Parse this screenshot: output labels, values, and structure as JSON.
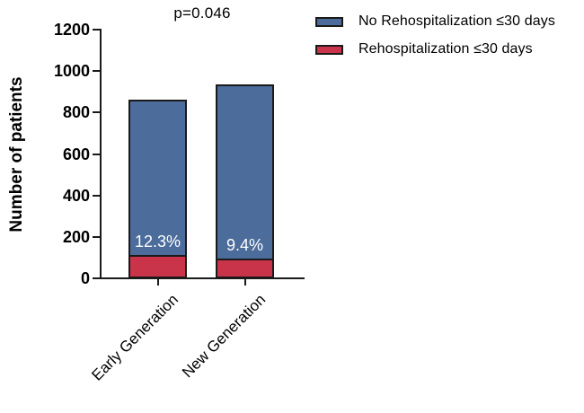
{
  "chart_data": {
    "type": "stacked_bar",
    "title": "",
    "annotation": "p=0.046",
    "ylabel": "Number of patients",
    "xlabel": "",
    "categories": [
      "Early Generation",
      "New Generation"
    ],
    "series": [
      {
        "name": "Rehospitalization ≤30 days",
        "color": "#C9344A",
        "values": [
          106,
          88
        ]
      },
      {
        "name": "No Rehospitalization ≤30 days",
        "color": "#4C6C9B",
        "values": [
          754,
          847
        ]
      }
    ],
    "totals": [
      860,
      935
    ],
    "bar_percent_labels": [
      "12.3%",
      "9.4%"
    ],
    "ylim": [
      0,
      1200
    ],
    "yticks": [
      0,
      200,
      400,
      600,
      800,
      1000,
      1200
    ],
    "grid": false,
    "legend_position": "top-right"
  },
  "legend": {
    "items": [
      {
        "label": "No Rehospitalization ≤30 days",
        "color": "#4C6C9B"
      },
      {
        "label": "Rehospitalization ≤30 days",
        "color": "#C9344A"
      }
    ]
  }
}
